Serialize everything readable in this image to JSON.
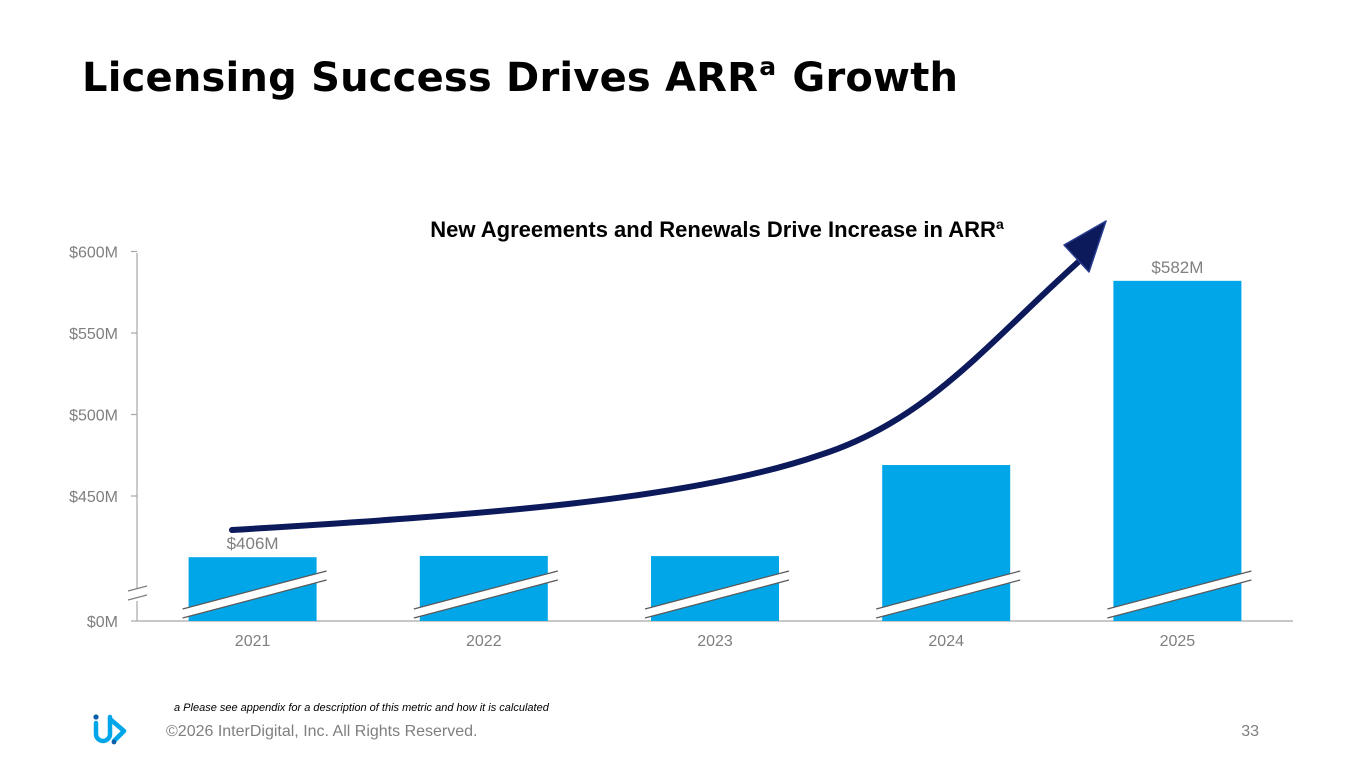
{
  "slide": {
    "title": "Licensing Success Drives ARR",
    "title_superscript": "a",
    "title_suffix": "Growth",
    "footnote": "a Please see appendix for a description of this metric and how it is calculated",
    "copyright": "©2026 InterDigital, Inc. All Rights Reserved.",
    "page_number": "33",
    "logo_icon": "interdigital-logo-icon"
  },
  "chart_data": {
    "type": "bar",
    "title": "New Agreements and Renewals Drive Increase in ARR",
    "title_superscript": "a",
    "categories": [
      "2021",
      "2022",
      "2023",
      "2024",
      "2025"
    ],
    "values": [
      406,
      414,
      413,
      469,
      582
    ],
    "data_labels": [
      "$406M",
      "",
      "",
      "",
      "$582M"
    ],
    "y_ticks": [
      "$0M",
      "$450M",
      "$500M",
      "$550M",
      "$600M"
    ],
    "ylim": [
      0,
      600
    ],
    "axis_break": true,
    "xlabel": "",
    "ylabel": "",
    "grid": false,
    "legend": "none",
    "colors": {
      "bar": "#00a6e8",
      "trend_arrow": "#0c1a5c",
      "axis": "#7f7f7f"
    }
  }
}
